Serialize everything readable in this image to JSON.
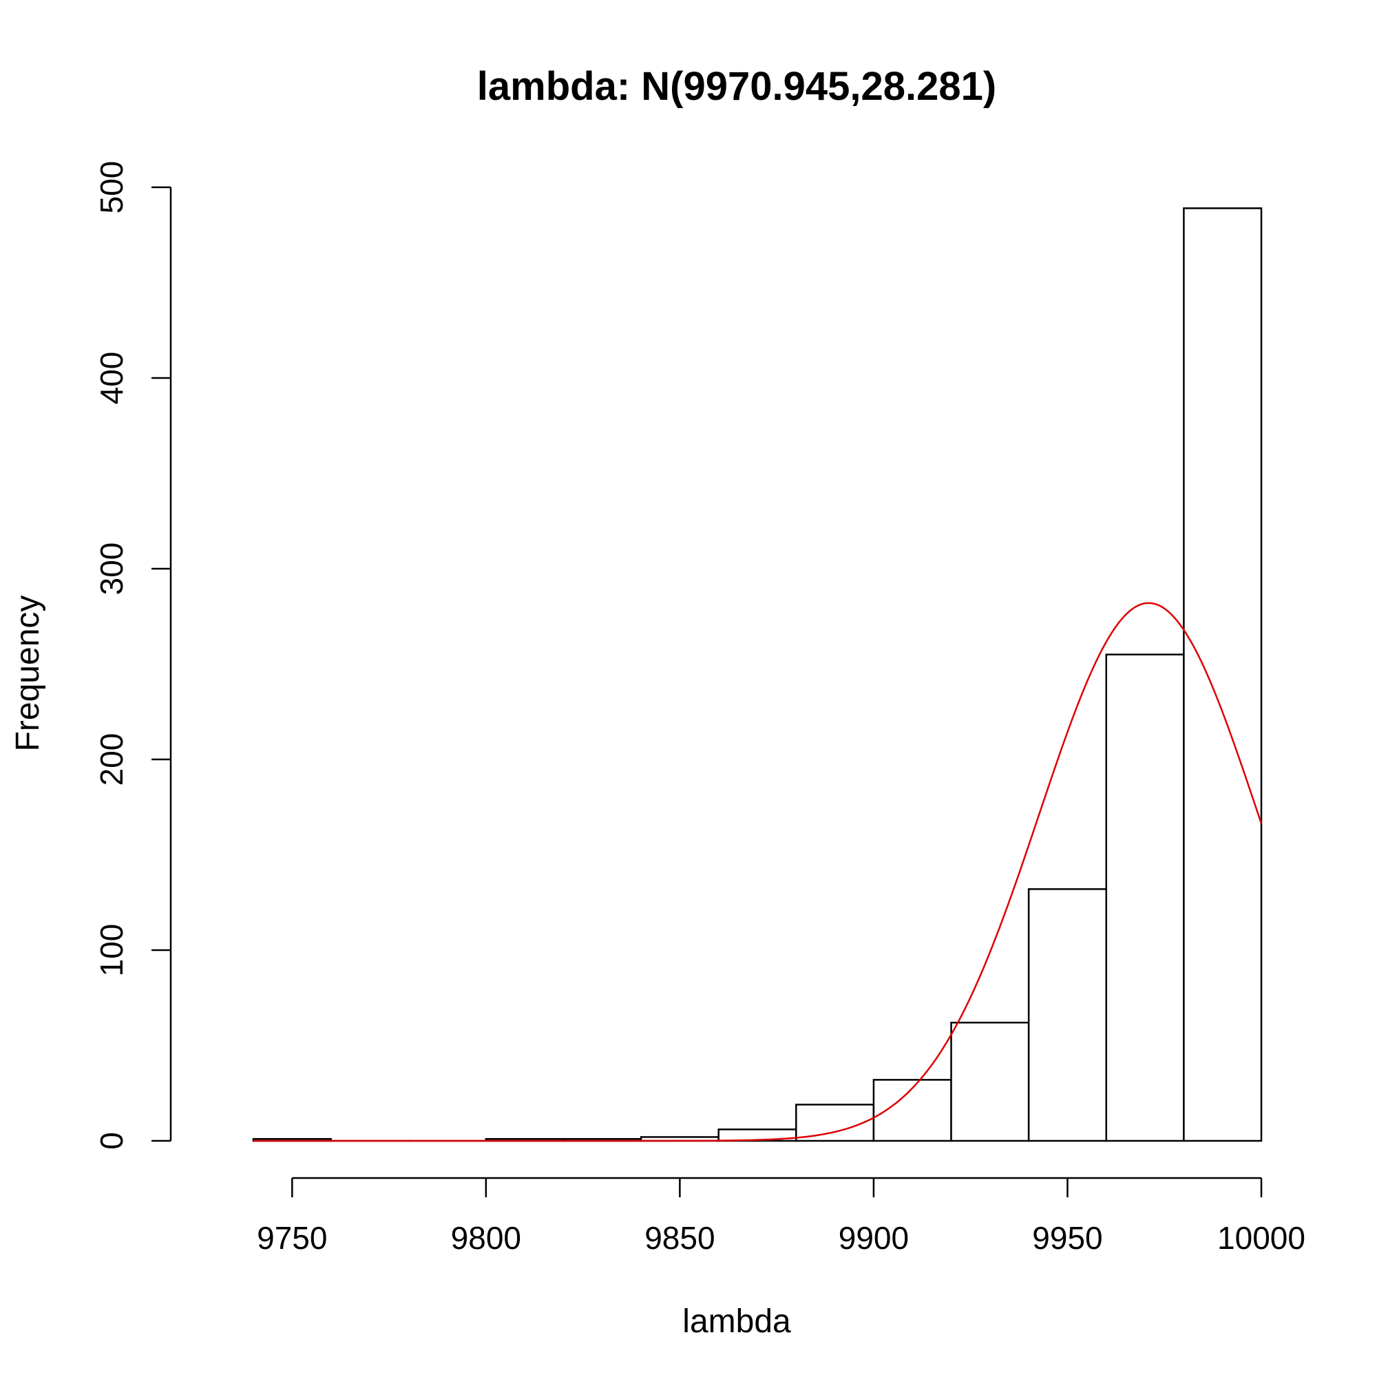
{
  "chart_data": {
    "type": "bar",
    "title": "lambda: N(9970.945,28.281)",
    "xlabel": "lambda",
    "ylabel": "Frequency",
    "xlim": [
      9740,
      10000
    ],
    "ylim": [
      0,
      500
    ],
    "x_ticks": [
      9750,
      9800,
      9850,
      9900,
      9950,
      10000
    ],
    "y_ticks": [
      0,
      100,
      200,
      300,
      400,
      500
    ],
    "bins": [
      {
        "start": 9740,
        "end": 9760,
        "count": 1
      },
      {
        "start": 9760,
        "end": 9780,
        "count": 0
      },
      {
        "start": 9780,
        "end": 9800,
        "count": 0
      },
      {
        "start": 9800,
        "end": 9820,
        "count": 1
      },
      {
        "start": 9820,
        "end": 9840,
        "count": 1
      },
      {
        "start": 9840,
        "end": 9860,
        "count": 2
      },
      {
        "start": 9860,
        "end": 9880,
        "count": 6
      },
      {
        "start": 9880,
        "end": 9900,
        "count": 19
      },
      {
        "start": 9900,
        "end": 9920,
        "count": 32
      },
      {
        "start": 9920,
        "end": 9940,
        "count": 62
      },
      {
        "start": 9940,
        "end": 9960,
        "count": 132
      },
      {
        "start": 9960,
        "end": 9980,
        "count": 255
      },
      {
        "start": 9980,
        "end": 10000,
        "count": 489
      }
    ],
    "normal_curve": {
      "mean": 9970.945,
      "sd": 28.281,
      "peak": 282,
      "color": "#dd0000"
    },
    "grid": false,
    "legend": "none"
  }
}
